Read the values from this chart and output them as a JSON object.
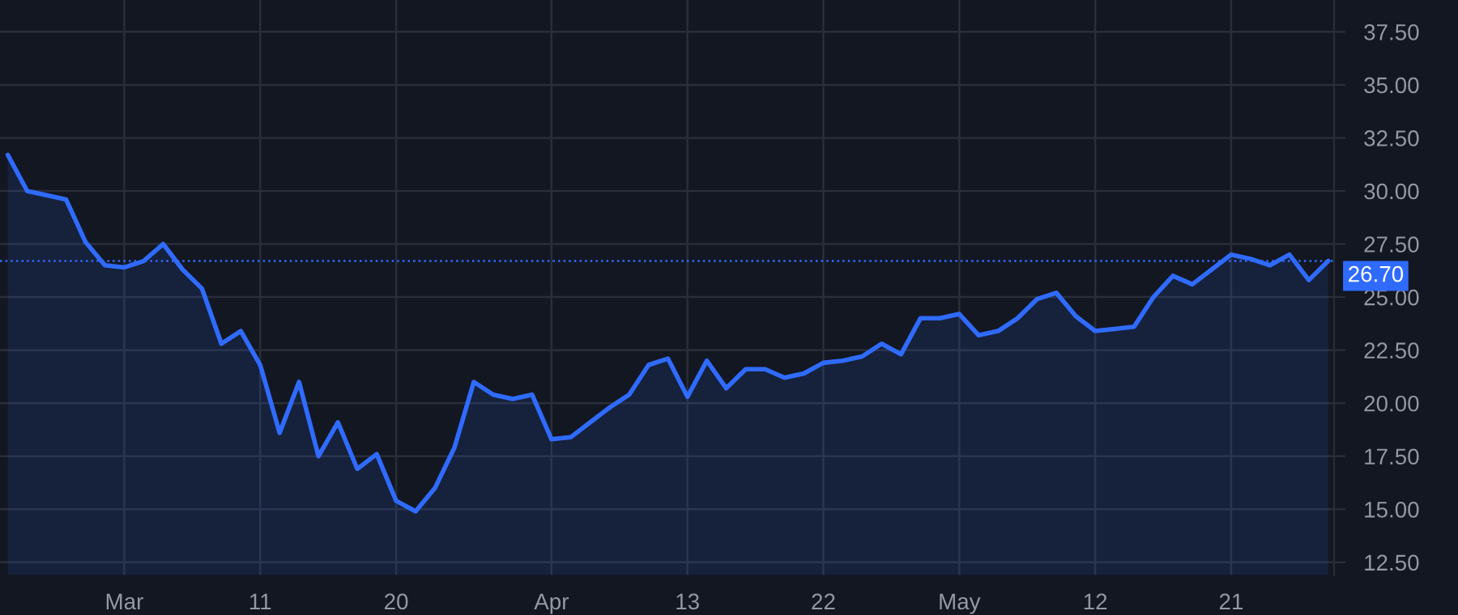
{
  "chart_data": {
    "type": "area",
    "categories": [
      null,
      null,
      null,
      null,
      null,
      null,
      "Mar",
      null,
      null,
      null,
      null,
      null,
      null,
      "11",
      null,
      null,
      null,
      null,
      null,
      null,
      "20",
      null,
      null,
      null,
      null,
      null,
      null,
      null,
      "Apr",
      null,
      null,
      null,
      null,
      null,
      null,
      "13",
      null,
      null,
      null,
      null,
      null,
      null,
      "22",
      null,
      null,
      null,
      null,
      null,
      null,
      "May",
      null,
      null,
      null,
      null,
      null,
      null,
      "12",
      null,
      null,
      null,
      null,
      null,
      null,
      "21",
      null,
      null,
      null,
      null,
      null
    ],
    "series": [
      {
        "color": "#2f6bff",
        "values": [
          31.7,
          30.0,
          29.8,
          29.6,
          27.6,
          26.5,
          26.4,
          26.7,
          27.5,
          26.3,
          25.4,
          22.8,
          23.4,
          21.8,
          18.6,
          21.0,
          17.5,
          19.1,
          16.9,
          17.6,
          15.4,
          14.9,
          16.0,
          17.9,
          21.0,
          20.4,
          20.2,
          20.4,
          18.3,
          18.4,
          19.1,
          19.8,
          20.4,
          21.8,
          22.1,
          20.3,
          22.0,
          20.7,
          21.6,
          21.6,
          21.2,
          21.4,
          21.9,
          22.0,
          22.2,
          22.8,
          22.3,
          24.0,
          24.0,
          24.2,
          23.2,
          23.4,
          24.0,
          24.9,
          25.2,
          24.1,
          23.4,
          23.5,
          23.6,
          25.0,
          26.0,
          25.6,
          26.3,
          27.0,
          26.8,
          26.5,
          27.0,
          25.8,
          26.7
        ]
      }
    ],
    "ylim": [
      11.9,
      39.0
    ],
    "yticks": [
      {
        "value": 12.5,
        "label": "12.50"
      },
      {
        "value": 15,
        "label": "15.00"
      },
      {
        "value": 17.5,
        "label": "17.50"
      },
      {
        "value": 20,
        "label": "20.00"
      },
      {
        "value": 22.5,
        "label": "22.50"
      },
      {
        "value": 25,
        "label": "25.00"
      },
      {
        "value": 27.5,
        "label": "27.50"
      },
      {
        "value": 30,
        "label": "30.00"
      },
      {
        "value": 32.5,
        "label": "32.50"
      },
      {
        "value": 35,
        "label": "35.00"
      },
      {
        "value": 37.5,
        "label": "37.50"
      }
    ],
    "ref_lines": [
      {
        "axis": "y",
        "value": 26.7,
        "label": "26.70",
        "color": "#2f6bff",
        "line_style": "dotted"
      }
    ],
    "grid": true
  }
}
